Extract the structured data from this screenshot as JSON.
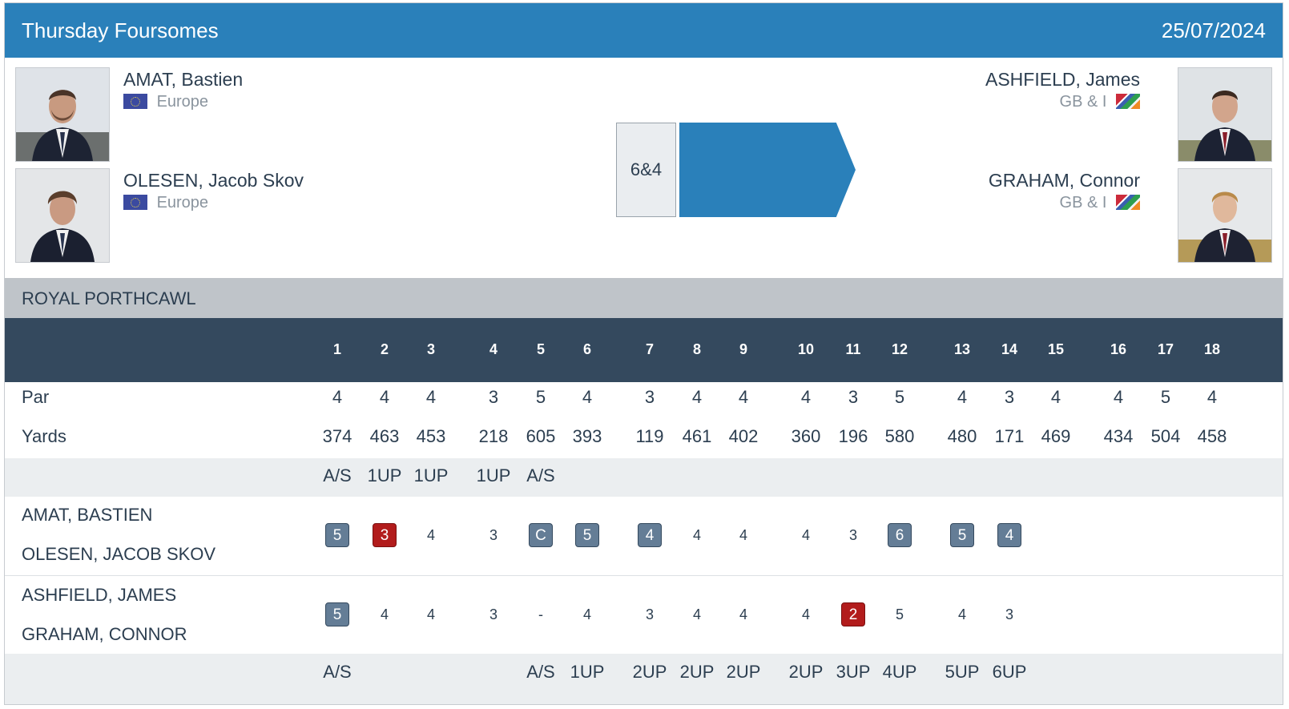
{
  "header": {
    "title": "Thursday Foursomes",
    "date": "25/07/2024"
  },
  "left_players": [
    {
      "name": "AMAT, Bastien",
      "team": "Europe",
      "flag": "eu-flag-icon"
    },
    {
      "name": "OLESEN, Jacob Skov",
      "team": "Europe",
      "flag": "eu-flag-icon"
    }
  ],
  "right_players": [
    {
      "name": "ASHFIELD, James",
      "team": "GB & I",
      "flag": "gbi-flag-icon"
    },
    {
      "name": "GRAHAM, Connor",
      "team": "GB & I",
      "flag": "gbi-flag-icon"
    }
  ],
  "result": {
    "score": "6&4",
    "winner_side": "right",
    "color": "#2a80ba"
  },
  "course": {
    "name": "ROYAL PORTHCAWL"
  },
  "holes": [
    "1",
    "2",
    "3",
    "4",
    "5",
    "6",
    "7",
    "8",
    "9",
    "10",
    "11",
    "12",
    "13",
    "14",
    "15",
    "16",
    "17",
    "18"
  ],
  "par": {
    "label": "Par",
    "values": [
      "4",
      "4",
      "4",
      "3",
      "5",
      "4",
      "3",
      "4",
      "4",
      "4",
      "3",
      "5",
      "4",
      "3",
      "4",
      "4",
      "5",
      "4"
    ]
  },
  "yards": {
    "label": "Yards",
    "values": [
      "374",
      "463",
      "453",
      "218",
      "605",
      "393",
      "119",
      "461",
      "402",
      "360",
      "196",
      "580",
      "480",
      "171",
      "469",
      "434",
      "504",
      "458"
    ]
  },
  "status_top": [
    "A/S",
    "1UP",
    "1UP",
    "1UP",
    "A/S",
    "",
    "",
    "",
    "",
    "",
    "",
    "",
    "",
    "",
    "",
    "",
    "",
    ""
  ],
  "team_a": {
    "players": [
      "AMAT, BASTIEN",
      "OLESEN, JACOB SKOV"
    ],
    "scores": [
      {
        "v": "5",
        "style": "blue"
      },
      {
        "v": "3",
        "style": "red"
      },
      {
        "v": "4",
        "style": ""
      },
      {
        "v": "3",
        "style": ""
      },
      {
        "v": "C",
        "style": "blue"
      },
      {
        "v": "5",
        "style": "blue"
      },
      {
        "v": "4",
        "style": "blue"
      },
      {
        "v": "4",
        "style": ""
      },
      {
        "v": "4",
        "style": ""
      },
      {
        "v": "4",
        "style": ""
      },
      {
        "v": "3",
        "style": ""
      },
      {
        "v": "6",
        "style": "blue"
      },
      {
        "v": "5",
        "style": "blue"
      },
      {
        "v": "4",
        "style": "blue"
      },
      {
        "v": "",
        "style": ""
      },
      {
        "v": "",
        "style": ""
      },
      {
        "v": "",
        "style": ""
      },
      {
        "v": "",
        "style": ""
      }
    ]
  },
  "team_b": {
    "players": [
      "ASHFIELD, JAMES",
      "GRAHAM, CONNOR"
    ],
    "scores": [
      {
        "v": "5",
        "style": "blue"
      },
      {
        "v": "4",
        "style": ""
      },
      {
        "v": "4",
        "style": ""
      },
      {
        "v": "3",
        "style": ""
      },
      {
        "v": "-",
        "style": ""
      },
      {
        "v": "4",
        "style": ""
      },
      {
        "v": "3",
        "style": ""
      },
      {
        "v": "4",
        "style": ""
      },
      {
        "v": "4",
        "style": ""
      },
      {
        "v": "4",
        "style": ""
      },
      {
        "v": "2",
        "style": "red"
      },
      {
        "v": "5",
        "style": ""
      },
      {
        "v": "4",
        "style": ""
      },
      {
        "v": "3",
        "style": ""
      },
      {
        "v": "",
        "style": ""
      },
      {
        "v": "",
        "style": ""
      },
      {
        "v": "",
        "style": ""
      },
      {
        "v": "",
        "style": ""
      }
    ]
  },
  "status_bottom": [
    "A/S",
    "",
    "",
    "",
    "A/S",
    "1UP",
    "2UP",
    "2UP",
    "2UP",
    "2UP",
    "3UP",
    "4UP",
    "5UP",
    "6UP",
    "",
    "",
    "",
    ""
  ],
  "colors": {
    "header": "#2a80ba",
    "holes_bar": "#34495e",
    "birdie": "#b21c1c",
    "bogey": "#647d96"
  }
}
